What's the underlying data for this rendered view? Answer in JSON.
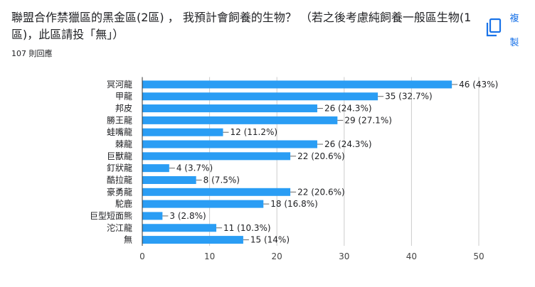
{
  "question": "聯盟合作禁獵區的黑金區(2區) ， 我預計會飼養的生物？ （若之後考慮純飼養一般區生物(1區)，此區請投「無」）",
  "response_count": "107 則回應",
  "copy_button": {
    "label": "複製",
    "icon": "copy-icon"
  },
  "colors": {
    "bar": "#2a9df4",
    "grid": "#cccccc",
    "axis": "#333333",
    "link": "#1a73e8"
  },
  "chart_data": {
    "type": "bar",
    "orientation": "horizontal",
    "categories": [
      "冥河龍",
      "甲龍",
      "邦皮",
      "勝王龍",
      "蛙嘴龍",
      "棘龍",
      "巨獸龍",
      "釘狀龍",
      "酷拉龍",
      "豪勇龍",
      "駝鹿",
      "巨型短面熊",
      "沱江龍",
      "無"
    ],
    "values": [
      46,
      35,
      26,
      29,
      12,
      26,
      22,
      4,
      8,
      22,
      18,
      3,
      11,
      15
    ],
    "value_labels": [
      "46 (43%)",
      "35 (32.7%)",
      "26 (24.3%)",
      "29 (27.1%)",
      "12 (11.2%)",
      "26 (24.3%)",
      "22 (20.6%)",
      "4 (3.7%)",
      "8 (7.5%)",
      "22 (20.6%)",
      "18 (16.8%)",
      "3 (2.8%)",
      "11 (10.3%)",
      "15 (14%)"
    ],
    "xlim": [
      0,
      50
    ],
    "xticks": [
      0,
      10,
      20,
      30,
      40,
      50
    ],
    "grid": true,
    "legend": "none"
  }
}
